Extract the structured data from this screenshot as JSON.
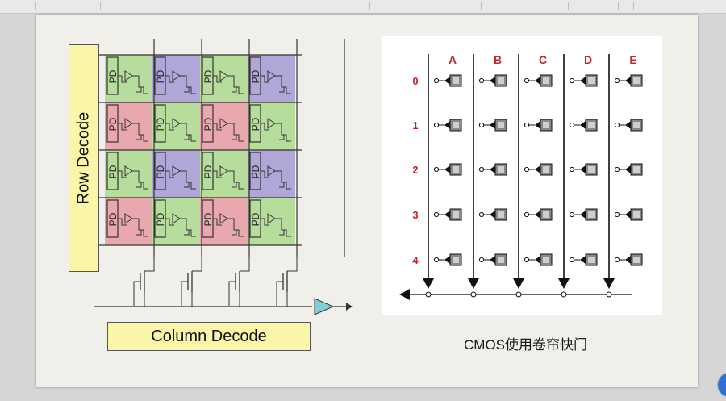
{
  "slide": {
    "row_decode_label": "Row Decode",
    "column_decode_label": "Column Decode",
    "pd_label": "PD",
    "caption": "CMOS使用卷帘快门"
  },
  "pixel_array": {
    "rows": [
      [
        "green",
        "purple",
        "green",
        "purple"
      ],
      [
        "red",
        "green",
        "red",
        "green"
      ],
      [
        "green",
        "purple",
        "green",
        "purple"
      ],
      [
        "red",
        "green",
        "red",
        "green"
      ]
    ],
    "colors": {
      "green": "#b7dd9c",
      "purple": "#b1a6d8",
      "red": "#e8a8ae",
      "amp": "#7fd0d6",
      "line": "#333333"
    }
  },
  "rolling_shutter": {
    "columns": [
      "A",
      "B",
      "C",
      "D",
      "E"
    ],
    "rows": [
      "0",
      "1",
      "2",
      "3",
      "4"
    ],
    "label_color": "#c0282c"
  }
}
